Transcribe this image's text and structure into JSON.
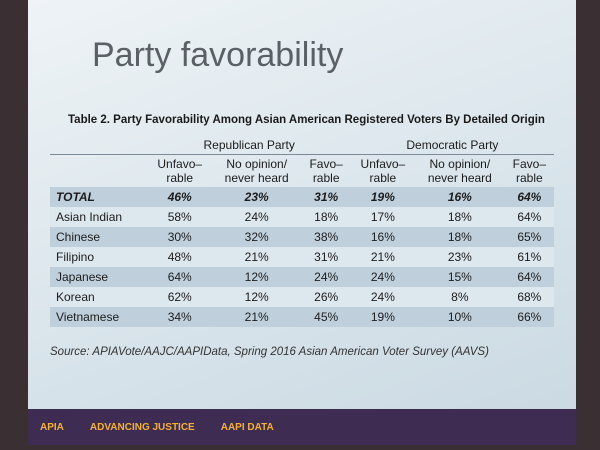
{
  "slide": {
    "title": "Party favorability",
    "table": {
      "caption": "Table 2.  Party Favorability Among Asian American Registered Voters By Detailed Origin",
      "groups": [
        {
          "name": "Republican Party",
          "columns": [
            [
              "Unfavo–",
              "rable"
            ],
            [
              "No opinion/",
              "never heard"
            ],
            [
              "Favo–",
              "rable"
            ]
          ]
        },
        {
          "name": "Democratic Party",
          "columns": [
            [
              "Unfavo–",
              "rable"
            ],
            [
              "No opinion/",
              "never heard"
            ],
            [
              "Favo–",
              "rable"
            ]
          ]
        }
      ],
      "rows": [
        [
          "TOTAL",
          "46%",
          "23%",
          "31%",
          "19%",
          "16%",
          "64%"
        ],
        [
          "Asian Indian",
          "58%",
          "24%",
          "18%",
          "17%",
          "18%",
          "64%"
        ],
        [
          "Chinese",
          "30%",
          "32%",
          "38%",
          "16%",
          "18%",
          "65%"
        ],
        [
          "Filipino",
          "48%",
          "21%",
          "31%",
          "21%",
          "23%",
          "61%"
        ],
        [
          "Japanese",
          "64%",
          "12%",
          "24%",
          "24%",
          "15%",
          "64%"
        ],
        [
          "Korean",
          "62%",
          "12%",
          "26%",
          "24%",
          "8%",
          "68%"
        ],
        [
          "Vietnamese",
          "34%",
          "21%",
          "45%",
          "19%",
          "10%",
          "66%"
        ]
      ],
      "source": "Source: APIAVote/AAJC/AAPIData, Spring 2016 Asian American Voter Survey (AAVS)"
    },
    "footer": {
      "logos": [
        "APIA",
        "ADVANCING JUSTICE",
        "AAPI DATA"
      ]
    }
  }
}
